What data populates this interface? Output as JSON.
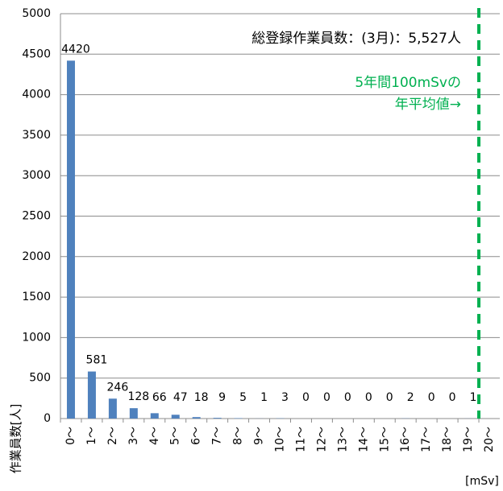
{
  "chart_data": {
    "type": "bar",
    "annotation": "総登録作業員数：(3月)：5,527人",
    "reference_label": [
      "5年間100mSvの",
      "年平均値→"
    ],
    "reference_color": "#00b050",
    "y_label": "作業員数[人]",
    "x_unit": "[mSv]",
    "categories": [
      "0～",
      "1～",
      "2～",
      "3～",
      "4～",
      "5～",
      "6～",
      "7～",
      "8～",
      "9～",
      "10～",
      "11～",
      "12～",
      "13～",
      "14～",
      "15～",
      "16～",
      "17～",
      "18～",
      "19～",
      "20～"
    ],
    "values": [
      4420,
      581,
      246,
      128,
      66,
      47,
      18,
      9,
      5,
      1,
      3,
      0,
      0,
      0,
      0,
      0,
      2,
      0,
      0,
      1,
      null
    ],
    "color": "#4f81bd",
    "ylim": [
      0,
      5000
    ],
    "yticks": [
      0,
      500,
      1000,
      1500,
      2000,
      2500,
      3000,
      3500,
      4000,
      4500,
      5000
    ],
    "grid": true
  }
}
